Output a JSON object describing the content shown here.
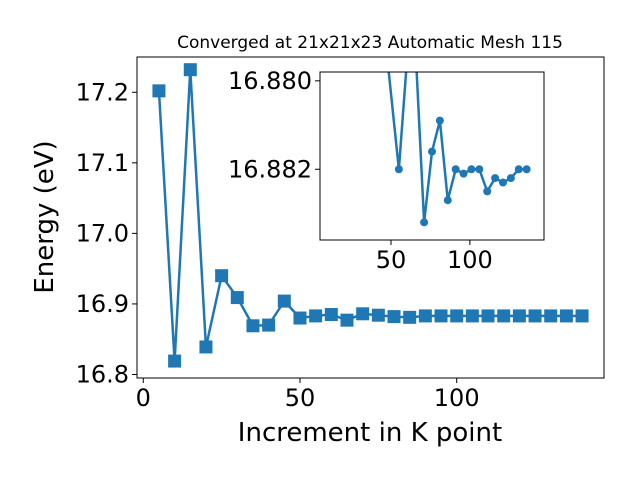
{
  "chart_data": [
    {
      "type": "line",
      "title": "Converged at 21x21x23 Automatic Mesh 115",
      "xlabel": "Increment in K point",
      "ylabel": "Energy (eV)",
      "xlim": [
        -2,
        147
      ],
      "ylim": [
        16.795,
        17.25
      ],
      "xticks": [
        0,
        50,
        100
      ],
      "yticks": [
        16.8,
        16.9,
        17.0,
        17.1,
        17.2
      ],
      "ytick_labels": [
        "16.8",
        "16.9",
        "17.0",
        "17.1",
        "17.2"
      ],
      "marker": "square",
      "color": "#1f77b4",
      "grid": false,
      "x": [
        5,
        10,
        15,
        20,
        25,
        30,
        35,
        40,
        45,
        50,
        55,
        60,
        65,
        70,
        75,
        80,
        85,
        90,
        95,
        100,
        105,
        110,
        115,
        120,
        125,
        130,
        135,
        140
      ],
      "y": [
        17.202,
        16.819,
        17.232,
        16.839,
        16.94,
        16.909,
        16.869,
        16.87,
        16.904,
        16.88,
        16.883,
        16.885,
        16.877,
        16.886,
        16.884,
        16.882,
        16.881,
        16.883,
        16.883,
        16.883,
        16.883,
        16.883,
        16.883,
        16.883,
        16.883,
        16.883,
        16.883,
        16.883
      ]
    },
    {
      "type": "line",
      "title": "",
      "xlabel": "",
      "ylabel": "",
      "xlim": [
        5,
        147
      ],
      "ylim": [
        16.8836,
        16.8798
      ],
      "y_inverted": true,
      "xticks": [
        50,
        100
      ],
      "yticks": [
        16.88,
        16.882
      ],
      "ytick_labels": [
        "16.880",
        "16.882"
      ],
      "marker": "circle",
      "color": "#1f77b4",
      "grid": false,
      "x": [
        48,
        55,
        60,
        66,
        71,
        76,
        81,
        86,
        91,
        96,
        101,
        106,
        111,
        116,
        121,
        126,
        131,
        136
      ],
      "y": [
        16.8796,
        16.882,
        16.8796,
        16.8796,
        16.8832,
        16.8816,
        16.8809,
        16.8827,
        16.882,
        16.8821,
        16.882,
        16.882,
        16.8825,
        16.8822,
        16.8823,
        16.8822,
        16.882,
        16.882
      ]
    }
  ]
}
